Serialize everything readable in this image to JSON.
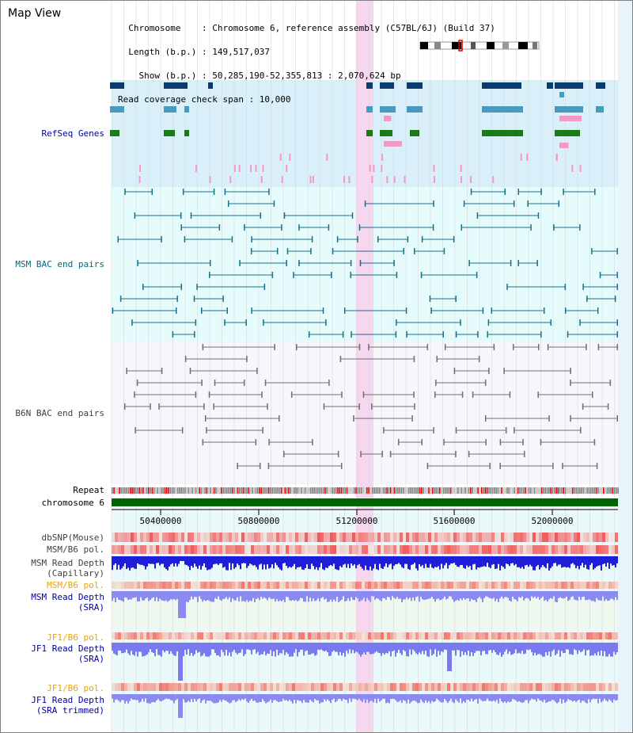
{
  "view": {
    "title": "Map View",
    "info_lines": [
      "  Chromosome    : Chromosome 6, reference assembly (C57BL/6J) (Build 37)",
      "  Length (b.p.) : 149,517,037",
      "    Show (b.p.) : 50,285,190-52,355,813 : 2,070,624 bp",
      "Read coverage check span : 10,000"
    ]
  },
  "tracks": {
    "refseq": "RefSeq Genes",
    "msm_bac": "MSM BAC end pairs",
    "b6n_bac": "B6N BAC end pairs",
    "repeat": "Repeat",
    "chromosome": "chromosome 6",
    "dbsnp": "dbSNP(Mouse)",
    "msm_b6_pol_1": "MSM/B6 pol.",
    "msm_depth_cap_1": "MSM Read Depth",
    "msm_depth_cap_2": "(Capillary)",
    "msm_b6_pol_2": "MSM/B6 pol.",
    "msm_depth_sra_1": "MSM Read Depth",
    "msm_depth_sra_2": "(SRA)",
    "jf1_b6_pol_1": "JF1/B6 pol.",
    "jf1_depth_sra_1": "JF1 Read Depth",
    "jf1_depth_sra_2": "(SRA)",
    "jf1_b6_pol_2": "JF1/B6 pol.",
    "jf1_depth_trim_1": "JF1 Read Depth",
    "jf1_depth_trim_2": "(SRA trimmed)"
  },
  "axis": {
    "ticks": [
      "50400000",
      "50800000",
      "51200000",
      "51600000",
      "52000000"
    ]
  },
  "colors": {
    "refseq_bg": "#d9f0fa",
    "msm_bg": "#e6fcfc",
    "b6n_bg": "#f7f7fb",
    "highlight": "#f7d6f0",
    "chromosome": "#006400",
    "gene_dark": "#0a3d6e",
    "gene_mid": "#4a9ac0",
    "gene_green": "#1a7a1a",
    "gene_pink": "#f39ac4",
    "msm_line": "#1a6f8a",
    "b6n_line": "#707070",
    "label_teal": "#00687a",
    "label_blue": "#0000a0",
    "label_orange": "#f0a000"
  }
}
